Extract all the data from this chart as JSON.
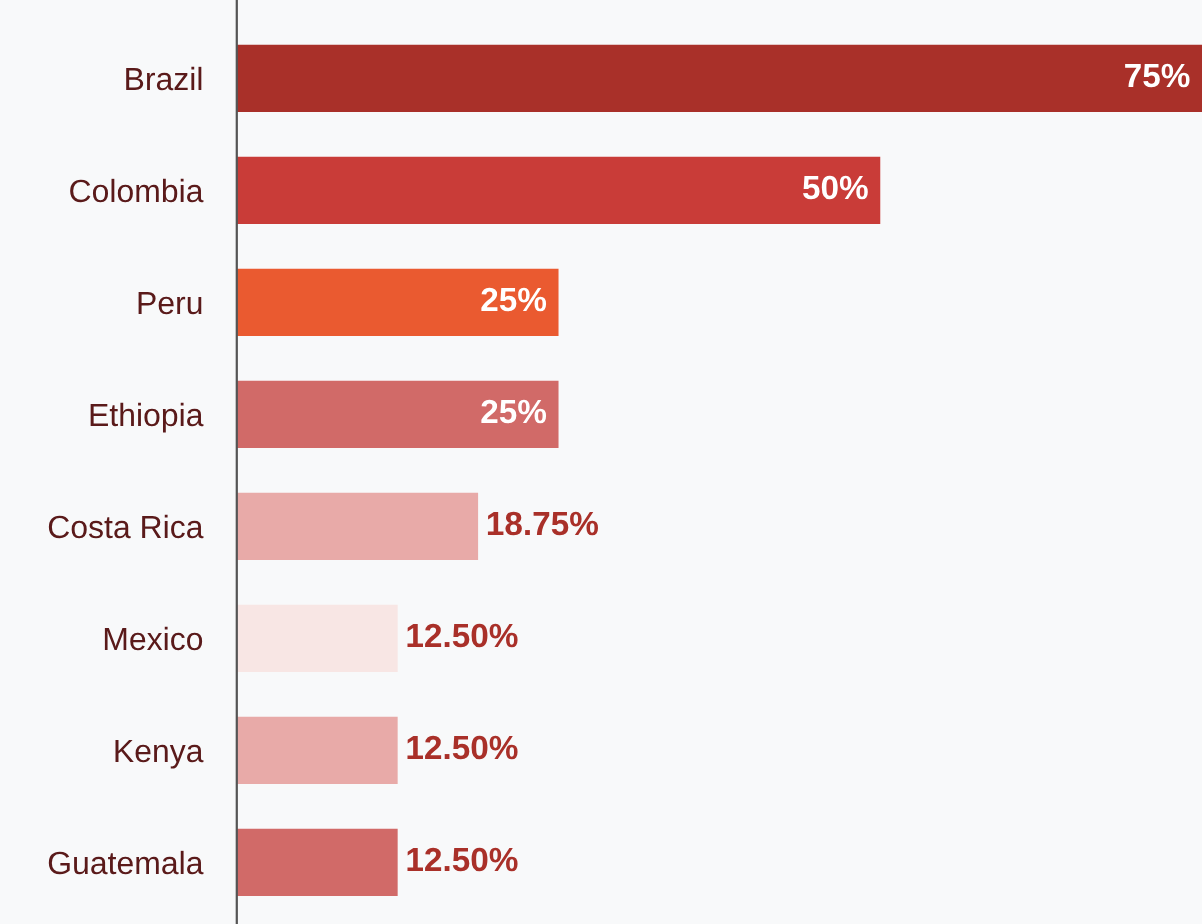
{
  "chart_data": {
    "type": "bar",
    "orientation": "horizontal",
    "categories": [
      "Brazil",
      "Colombia",
      "Peru",
      "Ethiopia",
      "Costa Rica",
      "Mexico",
      "Kenya",
      "Guatemala"
    ],
    "values": [
      75,
      50,
      25,
      25,
      18.75,
      12.5,
      12.5,
      12.5
    ],
    "value_labels": [
      "75%",
      "50%",
      "25%",
      "25%",
      "18.75%",
      "12.50%",
      "12.50%",
      "12.50%"
    ],
    "colors": [
      "#a93029",
      "#c93c38",
      "#ea5a30",
      "#d16a68",
      "#e8aaa8",
      "#f8e6e4",
      "#e8aaa8",
      "#d16a68"
    ],
    "grid": false,
    "legend": false
  }
}
